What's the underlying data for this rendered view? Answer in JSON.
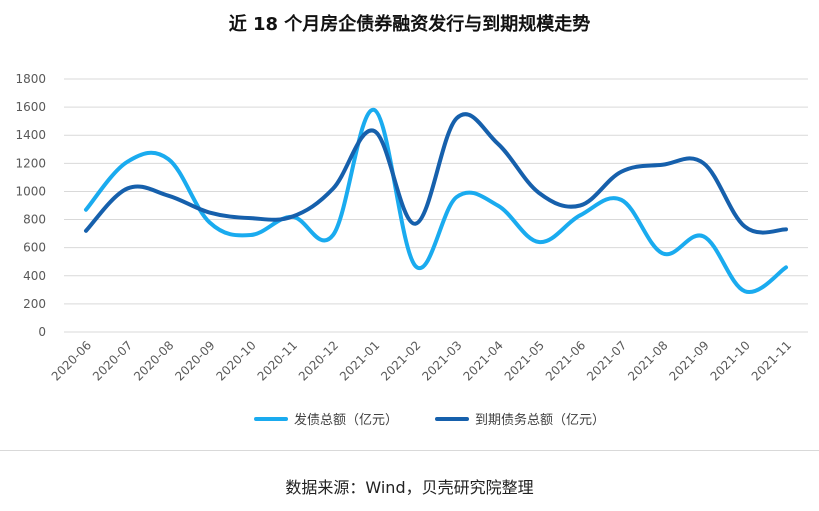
{
  "title": "近 18 个月房企债券融资发行与到期规模走势",
  "source": "数据来源：Wind，贝壳研究院整理",
  "colors": {
    "issue": "#1aabef",
    "maturity": "#1660ac",
    "grid": "#d9d9d9"
  },
  "chart_data": {
    "type": "line",
    "title": "近 18 个月房企债券融资发行与到期规模走势",
    "categories": [
      "2020-06",
      "2020-07",
      "2020-08",
      "2020-09",
      "2020-10",
      "2020-11",
      "2020-12",
      "2021-01",
      "2021-02",
      "2021-03",
      "2021-04",
      "2021-05",
      "2021-06",
      "2021-07",
      "2021-08",
      "2021-09",
      "2021-10",
      "2021-11"
    ],
    "series": [
      {
        "name": "发债总额（亿元）",
        "values": [
          870,
          1210,
          1230,
          780,
          690,
          820,
          690,
          1580,
          470,
          960,
          900,
          640,
          830,
          940,
          560,
          680,
          290,
          460
        ]
      },
      {
        "name": "到期债务总额（亿元）",
        "values": [
          720,
          1020,
          970,
          850,
          810,
          820,
          1020,
          1430,
          770,
          1520,
          1340,
          990,
          900,
          1140,
          1190,
          1200,
          750,
          730
        ]
      }
    ],
    "yticks": [
      "0",
      "200",
      "400",
      "600",
      "800",
      "1000",
      "1200",
      "1400",
      "1600",
      "1800"
    ],
    "ylim": [
      0,
      1800
    ],
    "grid": true,
    "legend_position": "bottom"
  }
}
